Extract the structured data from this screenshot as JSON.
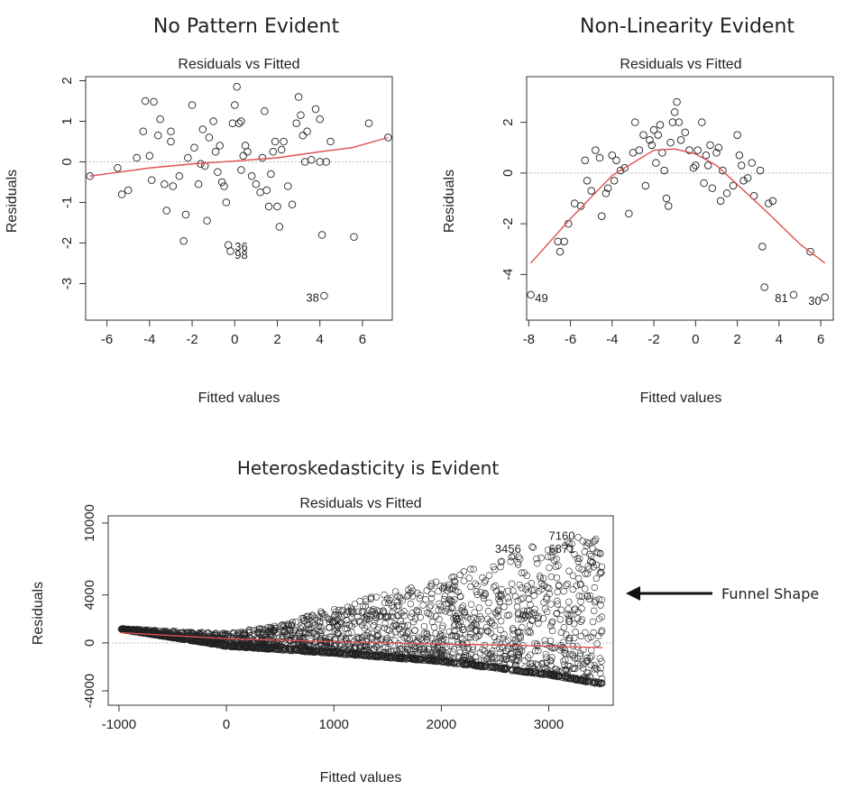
{
  "chart_data": [
    {
      "type": "scatter",
      "heading": "No Pattern Evident",
      "title": "Residuals vs Fitted",
      "xlabel": "Fitted values",
      "ylabel": "Residuals",
      "xlim": [
        -7,
        7.4
      ],
      "ylim": [
        -3.9,
        2.1
      ],
      "xticks": [
        -6,
        -4,
        -2,
        0,
        2,
        4,
        6
      ],
      "yticks": [
        -3,
        -2,
        -1,
        0,
        1,
        2
      ],
      "points": [
        [
          -6.8,
          -0.35
        ],
        [
          -5.5,
          -0.15
        ],
        [
          -5.3,
          -0.8
        ],
        [
          -5.0,
          -0.7
        ],
        [
          -4.6,
          0.1
        ],
        [
          -4.3,
          0.75
        ],
        [
          -4.2,
          1.5
        ],
        [
          -4.0,
          0.15
        ],
        [
          -3.9,
          -0.45
        ],
        [
          -3.8,
          1.48
        ],
        [
          -3.6,
          0.65
        ],
        [
          -3.5,
          1.05
        ],
        [
          -3.3,
          -0.55
        ],
        [
          -3.2,
          -1.2
        ],
        [
          -3.0,
          0.75
        ],
        [
          -3.0,
          0.5
        ],
        [
          -2.9,
          -0.6
        ],
        [
          -2.6,
          -0.35
        ],
        [
          -2.4,
          -1.95
        ],
        [
          -2.3,
          -1.3
        ],
        [
          -2.2,
          0.1
        ],
        [
          -2.0,
          1.4
        ],
        [
          -1.9,
          0.35
        ],
        [
          -1.7,
          -0.55
        ],
        [
          -1.6,
          -0.05
        ],
        [
          -1.5,
          0.8
        ],
        [
          -1.4,
          -0.1
        ],
        [
          -1.3,
          -1.45
        ],
        [
          -1.2,
          0.6
        ],
        [
          -1.0,
          1.0
        ],
        [
          -0.9,
          0.25
        ],
        [
          -0.8,
          -0.25
        ],
        [
          -0.7,
          0.4
        ],
        [
          -0.6,
          -0.5
        ],
        [
          -0.5,
          -0.6
        ],
        [
          -0.4,
          -1.0
        ],
        [
          -0.3,
          -2.05
        ],
        [
          -0.2,
          -2.2
        ],
        [
          -0.1,
          0.95
        ],
        [
          0.0,
          1.4
        ],
        [
          0.1,
          1.85
        ],
        [
          0.2,
          0.95
        ],
        [
          0.3,
          1.0
        ],
        [
          0.3,
          -0.2
        ],
        [
          0.4,
          0.15
        ],
        [
          0.5,
          0.4
        ],
        [
          0.6,
          0.25
        ],
        [
          0.8,
          -0.35
        ],
        [
          1.0,
          -0.55
        ],
        [
          1.2,
          -0.75
        ],
        [
          1.3,
          0.1
        ],
        [
          1.4,
          1.25
        ],
        [
          1.5,
          -0.7
        ],
        [
          1.6,
          -1.1
        ],
        [
          1.7,
          -0.3
        ],
        [
          1.8,
          0.25
        ],
        [
          1.9,
          0.5
        ],
        [
          2.0,
          -1.1
        ],
        [
          2.1,
          -1.6
        ],
        [
          2.2,
          0.3
        ],
        [
          2.3,
          0.5
        ],
        [
          2.5,
          -0.6
        ],
        [
          2.7,
          -1.05
        ],
        [
          2.9,
          0.95
        ],
        [
          3.0,
          1.6
        ],
        [
          3.1,
          1.15
        ],
        [
          3.2,
          0.65
        ],
        [
          3.3,
          0.0
        ],
        [
          3.4,
          0.75
        ],
        [
          3.6,
          0.05
        ],
        [
          3.8,
          1.3
        ],
        [
          4.0,
          1.05
        ],
        [
          4.0,
          0.0
        ],
        [
          4.1,
          -1.8
        ],
        [
          4.2,
          -3.3
        ],
        [
          4.3,
          0.0
        ],
        [
          4.5,
          0.5
        ],
        [
          5.6,
          -1.85
        ],
        [
          6.3,
          0.95
        ],
        [
          7.2,
          0.6
        ]
      ],
      "labels": [
        {
          "text": "36",
          "x": 0.0,
          "y": -2.1
        },
        {
          "text": "98",
          "x": 0.0,
          "y": -2.3
        },
        {
          "text": "38",
          "x": 3.35,
          "y": -3.35
        }
      ],
      "smooth": [
        [
          -6.8,
          -0.35
        ],
        [
          -4.0,
          -0.15
        ],
        [
          -2.0,
          -0.05
        ],
        [
          0.0,
          0.02
        ],
        [
          2.0,
          0.1
        ],
        [
          4.0,
          0.25
        ],
        [
          5.5,
          0.35
        ],
        [
          7.2,
          0.6
        ]
      ]
    },
    {
      "type": "scatter",
      "heading": "Non-Linearity Evident",
      "title": "Residuals vs Fitted",
      "xlabel": "Fitted values",
      "ylabel": "Residuals",
      "xlim": [
        -8.1,
        6.6
      ],
      "ylim": [
        -5.8,
        3.8
      ],
      "xticks": [
        -8,
        -6,
        -4,
        -2,
        0,
        2,
        4,
        6
      ],
      "yticks": [
        -4,
        -2,
        0,
        2
      ],
      "points": [
        [
          -7.9,
          -4.8
        ],
        [
          -6.6,
          -2.7
        ],
        [
          -6.5,
          -3.1
        ],
        [
          -6.3,
          -2.7
        ],
        [
          -6.1,
          -2.0
        ],
        [
          -5.8,
          -1.2
        ],
        [
          -5.5,
          -1.3
        ],
        [
          -5.3,
          0.5
        ],
        [
          -5.2,
          -0.3
        ],
        [
          -5.0,
          -0.7
        ],
        [
          -4.8,
          0.9
        ],
        [
          -4.6,
          0.6
        ],
        [
          -4.5,
          -1.7
        ],
        [
          -4.3,
          -0.8
        ],
        [
          -4.2,
          -0.6
        ],
        [
          -4.0,
          0.7
        ],
        [
          -3.9,
          -0.3
        ],
        [
          -3.8,
          0.5
        ],
        [
          -3.6,
          0.1
        ],
        [
          -3.4,
          0.2
        ],
        [
          -3.2,
          -1.6
        ],
        [
          -3.0,
          0.8
        ],
        [
          -2.9,
          2.0
        ],
        [
          -2.7,
          0.9
        ],
        [
          -2.5,
          1.5
        ],
        [
          -2.4,
          -0.5
        ],
        [
          -2.2,
          1.3
        ],
        [
          -2.1,
          1.1
        ],
        [
          -2.0,
          1.7
        ],
        [
          -1.9,
          0.4
        ],
        [
          -1.8,
          1.5
        ],
        [
          -1.7,
          1.9
        ],
        [
          -1.6,
          0.8
        ],
        [
          -1.5,
          0.1
        ],
        [
          -1.4,
          -1.0
        ],
        [
          -1.3,
          -1.3
        ],
        [
          -1.2,
          1.2
        ],
        [
          -1.1,
          2.0
        ],
        [
          -1.0,
          2.4
        ],
        [
          -0.9,
          2.8
        ],
        [
          -0.8,
          2.0
        ],
        [
          -0.7,
          1.3
        ],
        [
          -0.5,
          1.6
        ],
        [
          -0.3,
          0.9
        ],
        [
          -0.1,
          0.2
        ],
        [
          0.0,
          0.3
        ],
        [
          0.1,
          0.9
        ],
        [
          0.3,
          2.0
        ],
        [
          0.4,
          -0.4
        ],
        [
          0.5,
          0.7
        ],
        [
          0.6,
          0.3
        ],
        [
          0.7,
          1.1
        ],
        [
          0.8,
          -0.6
        ],
        [
          1.0,
          0.8
        ],
        [
          1.1,
          1.0
        ],
        [
          1.2,
          -1.1
        ],
        [
          1.3,
          0.1
        ],
        [
          1.5,
          -0.8
        ],
        [
          1.8,
          -0.5
        ],
        [
          2.0,
          1.5
        ],
        [
          2.1,
          0.7
        ],
        [
          2.2,
          0.3
        ],
        [
          2.3,
          -0.3
        ],
        [
          2.5,
          -0.2
        ],
        [
          2.7,
          0.4
        ],
        [
          2.8,
          -0.9
        ],
        [
          3.1,
          0.1
        ],
        [
          3.2,
          -2.9
        ],
        [
          3.3,
          -4.5
        ],
        [
          3.5,
          -1.2
        ],
        [
          3.7,
          -1.1
        ],
        [
          4.7,
          -4.8
        ],
        [
          5.5,
          -3.1
        ],
        [
          6.2,
          -4.9
        ]
      ],
      "labels": [
        {
          "text": "49",
          "x": -7.7,
          "y": -4.95
        },
        {
          "text": "81",
          "x": 3.8,
          "y": -4.95
        },
        {
          "text": "30",
          "x": 5.4,
          "y": -5.05
        }
      ],
      "smooth": [
        [
          -7.9,
          -3.55
        ],
        [
          -6.0,
          -1.8
        ],
        [
          -4.0,
          -0.1
        ],
        [
          -2.0,
          0.9
        ],
        [
          -1.0,
          0.95
        ],
        [
          0.0,
          0.75
        ],
        [
          1.0,
          0.3
        ],
        [
          2.0,
          -0.45
        ],
        [
          3.5,
          -1.6
        ],
        [
          5.0,
          -2.8
        ],
        [
          6.2,
          -3.55
        ]
      ]
    },
    {
      "type": "scatter",
      "heading": "Heteroskedasticity is Evident",
      "title": "Residuals vs Fitted",
      "xlabel": "Fitted values",
      "ylabel": "Residuals",
      "xlim": [
        -1100,
        3600
      ],
      "ylim": [
        -5200,
        10600
      ],
      "xticks": [
        -1000,
        0,
        1000,
        2000,
        3000
      ],
      "yticks": [
        -4000,
        0,
        4000,
        10000
      ],
      "funnel": {
        "x_range": [
          -980,
          3500
        ],
        "lower_edge": [
          [
            -980,
            1100
          ],
          [
            0,
            -300
          ],
          [
            1000,
            -900
          ],
          [
            2000,
            -1600
          ],
          [
            3000,
            -2700
          ],
          [
            3500,
            -3500
          ]
        ],
        "upper_edge": [
          [
            -980,
            1200
          ],
          [
            0,
            800
          ],
          [
            500,
            1500
          ],
          [
            1000,
            3000
          ],
          [
            1500,
            4200
          ],
          [
            2000,
            5300
          ],
          [
            2500,
            7000
          ],
          [
            3000,
            8600
          ],
          [
            3300,
            9000
          ]
        ]
      },
      "labels": [
        {
          "text": "3456",
          "x": 2500,
          "y": 7800
        },
        {
          "text": "7160",
          "x": 3000,
          "y": 8900
        },
        {
          "text": "6871",
          "x": 3000,
          "y": 7800
        }
      ],
      "smooth": [
        [
          -980,
          850
        ],
        [
          0,
          350
        ],
        [
          1000,
          100
        ],
        [
          2000,
          -100
        ],
        [
          2700,
          -200
        ],
        [
          3500,
          -400
        ]
      ],
      "annotation": "Funnel Shape"
    }
  ]
}
